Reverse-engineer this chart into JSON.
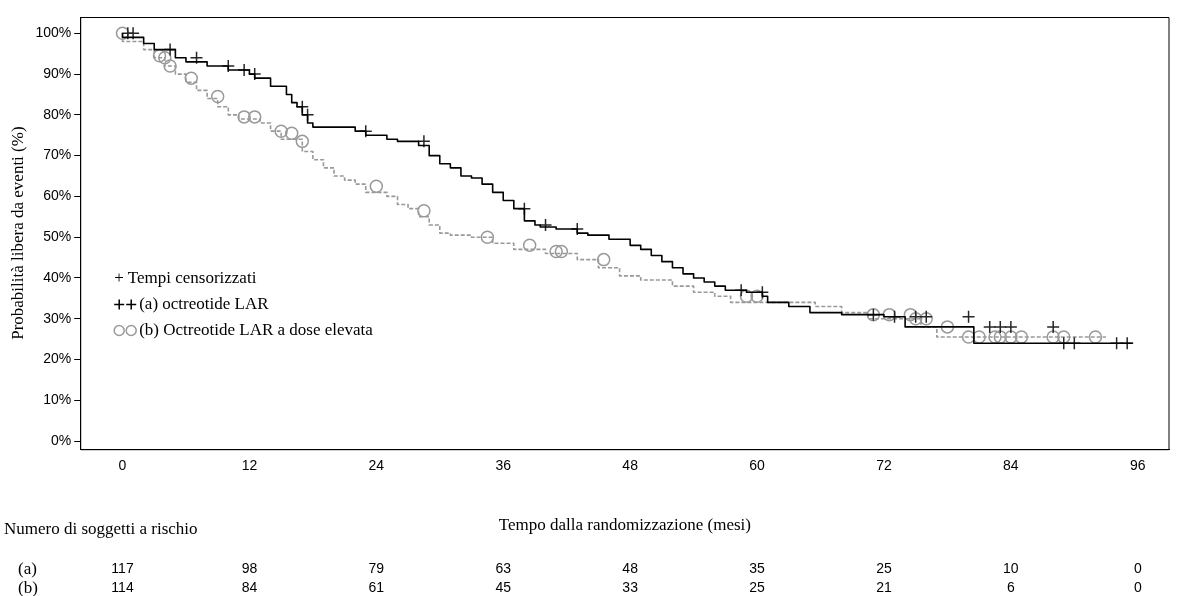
{
  "chart_data": {
    "type": "step",
    "xlabel": "Tempo dalla randomizzazione (mesi)",
    "ylabel": "Probabilità libera da eventi (%)",
    "legend": "left",
    "legend_title": "+ Tempi censorizzati",
    "xlim": [
      -4,
      99
    ],
    "xticks": [
      0,
      12,
      24,
      36,
      48,
      60,
      72,
      84,
      96
    ],
    "ylim": [
      -2,
      104
    ],
    "yticks": [
      {
        "value": 0,
        "label": "0%"
      },
      {
        "value": 10,
        "label": "10%"
      },
      {
        "value": 20,
        "label": "20%"
      },
      {
        "value": 30,
        "label": "30%"
      },
      {
        "value": 40,
        "label": "40%"
      },
      {
        "value": 50,
        "label": "50%"
      },
      {
        "value": 60,
        "label": "60%"
      },
      {
        "value": 70,
        "label": "70%"
      },
      {
        "value": 80,
        "label": "80%"
      },
      {
        "value": 90,
        "label": "90%"
      },
      {
        "value": 100,
        "label": "100%"
      }
    ],
    "grid": false,
    "series": [
      {
        "name": "(a) octreotide LAR",
        "color": "#000000",
        "line_style": "solid",
        "x": [
          0,
          2,
          3,
          5,
          6,
          8,
          10,
          12,
          12.5,
          14,
          15.5,
          16,
          16.5,
          17,
          17.5,
          18,
          22,
          23,
          25,
          26,
          28,
          29,
          30,
          31,
          32,
          33,
          34,
          35,
          36,
          37,
          38,
          39,
          39.5,
          41,
          43,
          44,
          46,
          48,
          49,
          50,
          51,
          52,
          53,
          54,
          55,
          56,
          57,
          59,
          60.5,
          61,
          63,
          65,
          68,
          72,
          74,
          80.5,
          88,
          95.5
        ],
        "values": [
          100,
          99,
          97.5,
          96,
          94,
          93,
          92,
          91,
          90,
          89,
          87,
          85,
          83,
          82,
          80,
          78,
          77,
          76,
          75,
          74,
          73.5,
          72.5,
          70,
          68,
          67,
          65,
          64.5,
          63,
          61,
          59,
          57,
          54,
          53,
          52.5,
          52,
          51,
          50.5,
          49.5,
          48,
          47,
          45.5,
          44,
          42.5,
          41,
          40,
          39,
          38,
          37,
          36.5,
          35.5,
          34,
          33,
          31.5,
          31,
          30.5,
          28,
          24,
          24
        ]
      },
      {
        "type": "scatter",
        "color": "#262626",
        "marker": "cross",
        "x": [
          0.5,
          1,
          4.5,
          7,
          10,
          11.5,
          12.5,
          17,
          17.5,
          23,
          28.5,
          38,
          40,
          43,
          58.5,
          60.5,
          71,
          73,
          75,
          76,
          80,
          82,
          83,
          84,
          88,
          89,
          90,
          94,
          95
        ],
        "values": [
          100,
          100,
          96,
          94,
          92,
          91,
          90,
          82,
          80,
          76,
          73.5,
          57,
          53,
          52,
          37,
          36.5,
          31,
          30.5,
          30.5,
          30.5,
          30.5,
          28,
          28,
          28,
          28,
          24,
          24,
          24,
          24
        ]
      },
      {
        "name": "(b) Octreotide LAR a dose elevata",
        "color": "#999999",
        "line_style": "dashed",
        "x": [
          0,
          2,
          3,
          4,
          5,
          6,
          7,
          8,
          9,
          10,
          11,
          13,
          14,
          15,
          17,
          18,
          19,
          20,
          21,
          22,
          23,
          25,
          26,
          27,
          28,
          29,
          30,
          31,
          33,
          35,
          37,
          40,
          43,
          45,
          47,
          49,
          52,
          54,
          56,
          57.5,
          65.5,
          68,
          70.5,
          75.5,
          77,
          78.5,
          93
        ],
        "values": [
          100,
          98,
          96,
          94,
          92,
          90,
          88,
          86,
          84,
          82,
          80,
          79,
          78,
          76,
          74,
          71,
          69,
          67,
          65,
          64,
          63,
          61,
          60,
          58,
          57,
          55,
          53,
          51,
          50.5,
          50,
          48.5,
          47,
          46,
          44.5,
          42.5,
          40.5,
          39.5,
          38,
          36.5,
          35.5,
          34,
          33,
          31.5,
          30,
          28,
          25.5,
          25.5
        ]
      },
      {
        "type": "scatter",
        "color": "#999999",
        "marker": "circle",
        "x": [
          0,
          3.5,
          4,
          4.5,
          6.5,
          9,
          11.5,
          12.5,
          15,
          16,
          17,
          24,
          28.5,
          34.5,
          38.5,
          41,
          41.5,
          45.5,
          59,
          60,
          71,
          72.5,
          74.5,
          75,
          76,
          78,
          80,
          81,
          82.5,
          83,
          84,
          85,
          88,
          89,
          92
        ],
        "values": [
          100,
          94.5,
          94,
          92,
          89,
          84.5,
          79.5,
          79.5,
          76,
          75.5,
          73.5,
          62.5,
          56.5,
          50,
          48,
          46.5,
          46.5,
          44.5,
          35.5,
          35.5,
          31,
          31,
          31,
          30,
          30,
          28,
          25.5,
          25.5,
          25.5,
          25.5,
          25.5,
          25.5,
          25.5,
          25.5,
          25.5
        ]
      }
    ],
    "annotations": [
      "Numero di soggetti a rischio",
      "(a)",
      "(b)",
      "117",
      "98",
      "79",
      "63",
      "48",
      "35",
      "25",
      "10",
      "0",
      "114",
      "84",
      "61",
      "45",
      "33",
      "25",
      "21",
      "6",
      "0"
    ]
  }
}
